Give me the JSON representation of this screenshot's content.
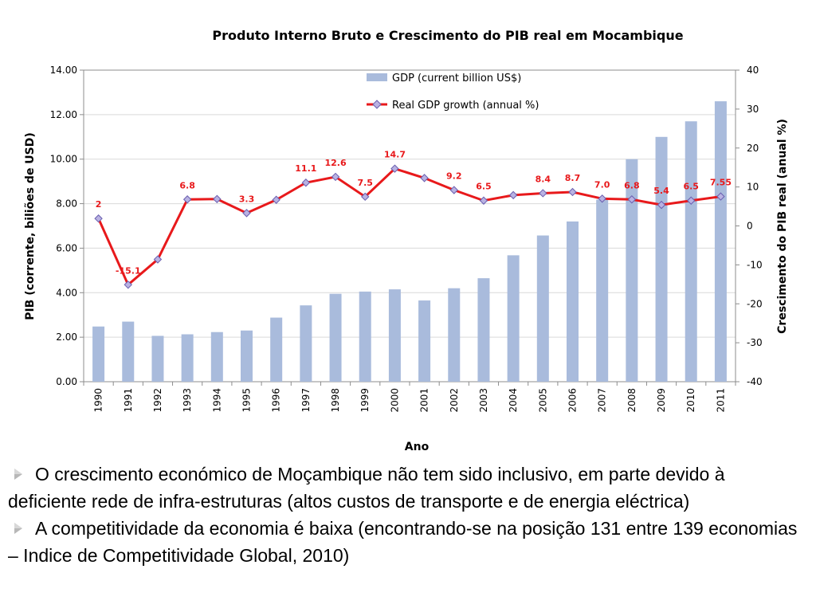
{
  "chart_data": {
    "type": "bar+line",
    "title": "Produto Interno Bruto e Crescimento do PIB real em Mocambique",
    "xlabel": "Ano",
    "ylabel_left": "PIB (corrente, biliões de USD)",
    "ylabel_right": "Crescimento do PIB real (anual %)",
    "categories": [
      "1990",
      "1991",
      "1992",
      "1993",
      "1994",
      "1995",
      "1996",
      "1997",
      "1998",
      "1999",
      "2000",
      "2001",
      "2002",
      "2003",
      "2004",
      "2005",
      "2006",
      "2007",
      "2008",
      "2009",
      "2010",
      "2011"
    ],
    "ylim_left": [
      0,
      14
    ],
    "ylim_right": [
      -40,
      40
    ],
    "left_ticks": [
      "0.00",
      "2.00",
      "4.00",
      "6.00",
      "8.00",
      "10.00",
      "12.00",
      "14.00"
    ],
    "right_ticks": [
      "-40",
      "-30",
      "-20",
      "-10",
      "0",
      "10",
      "20",
      "30",
      "40"
    ],
    "legend_position": "top-center",
    "series": [
      {
        "name": "GDP (current billion US$)",
        "type": "bar",
        "axis": "left",
        "color": "#A9BBDC",
        "values": [
          2.48,
          2.7,
          2.06,
          2.13,
          2.23,
          2.3,
          2.88,
          3.43,
          3.95,
          4.05,
          4.15,
          3.65,
          4.2,
          4.65,
          5.68,
          6.57,
          7.2,
          8.18,
          10.0,
          11.0,
          11.7,
          12.6
        ]
      },
      {
        "name": "Real GDP growth (annual %)",
        "type": "line",
        "axis": "right",
        "color": "#E8191B",
        "marker_color": "#B9B2E2",
        "values": [
          1.9,
          -15.1,
          -8.6,
          6.8,
          6.9,
          3.3,
          6.7,
          11.1,
          12.6,
          7.5,
          14.7,
          12.3,
          9.2,
          6.5,
          7.9,
          8.4,
          8.7,
          7.0,
          6.8,
          5.4,
          6.5,
          7.55
        ],
        "data_labels": [
          "2",
          "-15.1",
          "",
          "6.8",
          "",
          "3.3",
          "",
          "11.1",
          "12.6",
          "7.5",
          "14.7",
          "",
          "9.2",
          "6.5",
          "",
          "8.4",
          "8.7",
          "7.0",
          "6.8",
          "5.4",
          "6.5",
          "7.55"
        ]
      }
    ],
    "grid": true
  },
  "bullets": [
    "O crescimento económico de Moçambique não tem sido inclusivo, em parte devido à deficiente rede de infra-estruturas (altos custos de transporte e de energia eléctrica)",
    "A competitividade da economia é baixa (encontrando-se na posição 131 entre 139 economias – Indice de Competitividade Global, 2010)"
  ],
  "colors": {
    "bullet_icon": "#B8B8B8",
    "label_text": "#E8191B"
  }
}
